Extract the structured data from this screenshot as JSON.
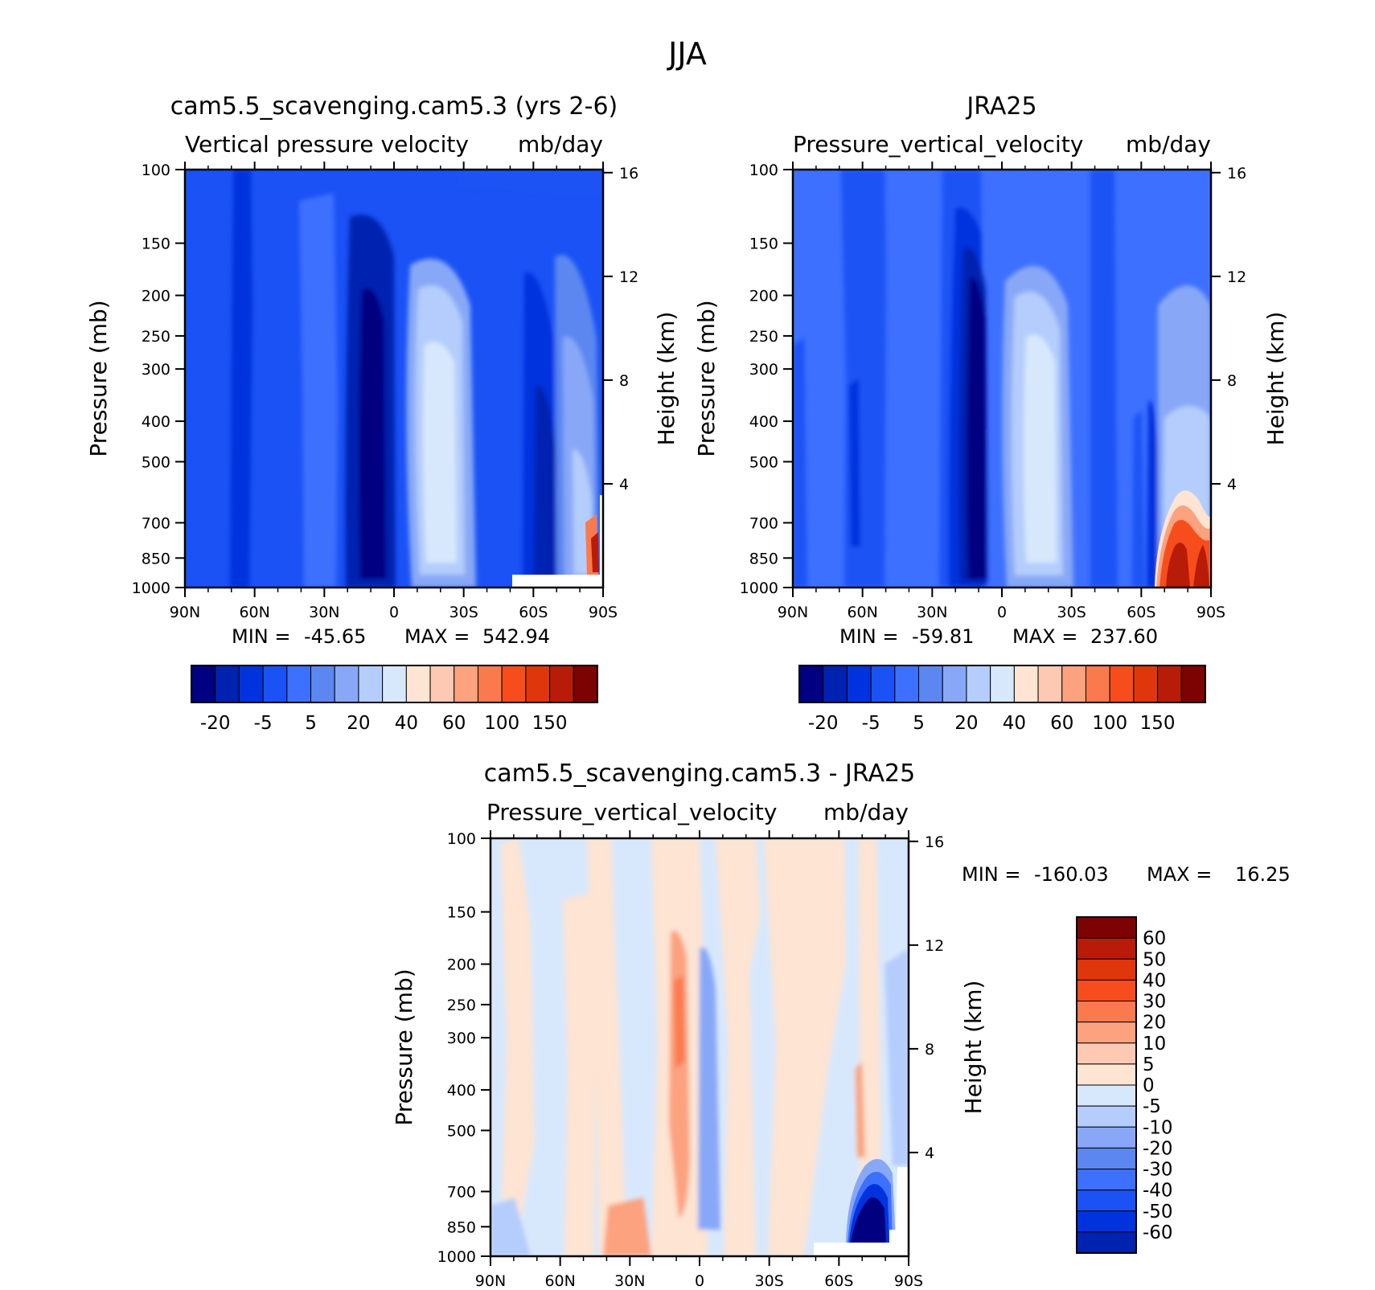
{
  "figure_title": "JJA",
  "colors": {
    "diverging": [
      "#000080",
      "#0022b0",
      "#0033dd",
      "#1a52f5",
      "#3d70ff",
      "#5c87f0",
      "#88a8f7",
      "#b4cdfc",
      "#d8e8fc",
      "#fde4d3",
      "#fdc9b2",
      "#fca27f",
      "#fb7a4d",
      "#f74d1c",
      "#e0360b",
      "#b81c08",
      "#7d0202"
    ],
    "blank": "#ffffff"
  },
  "chart_data": [
    {
      "type": "heatmap",
      "title": "cam5.5_scavenging.cam5.3 (yrs 2-6)",
      "subtitle_left": "Vertical pressure velocity",
      "subtitle_right": "mb/day",
      "xlabel": "",
      "ylabel": "Pressure (mb)",
      "y2label": "Height (km)",
      "x_ticks": [
        "90N",
        "60N",
        "30N",
        "0",
        "30S",
        "60S",
        "90S"
      ],
      "y_ticks": [
        "100",
        "150",
        "200",
        "250",
        "300",
        "400",
        "500",
        "700",
        "850",
        "1000"
      ],
      "y2_ticks": [
        "16",
        "12",
        "8",
        "4"
      ],
      "min_label": "MIN =",
      "min_value": "-45.65",
      "max_label": "MAX =",
      "max_value": "542.94",
      "colorbar_labels": [
        "-20",
        "-5",
        "5",
        "20",
        "40",
        "60",
        "100",
        "150"
      ],
      "ylim": [
        1000,
        100
      ]
    },
    {
      "type": "heatmap",
      "title": "JRA25",
      "subtitle_left": "Pressure_vertical_velocity",
      "subtitle_right": "mb/day",
      "xlabel": "",
      "ylabel": "Pressure (mb)",
      "y2label": "Height (km)",
      "x_ticks": [
        "90N",
        "60N",
        "30N",
        "0",
        "30S",
        "60S",
        "90S"
      ],
      "y_ticks": [
        "100",
        "150",
        "200",
        "250",
        "300",
        "400",
        "500",
        "700",
        "850",
        "1000"
      ],
      "y2_ticks": [
        "16",
        "12",
        "8",
        "4"
      ],
      "min_label": "MIN =",
      "min_value": "-59.81",
      "max_label": "MAX =",
      "max_value": "237.60",
      "colorbar_labels": [
        "-20",
        "-5",
        "5",
        "20",
        "40",
        "60",
        "100",
        "150"
      ],
      "ylim": [
        1000,
        100
      ]
    },
    {
      "type": "heatmap",
      "title": "cam5.5_scavenging.cam5.3 - JRA25",
      "subtitle_left": "Pressure_vertical_velocity",
      "subtitle_right": "mb/day",
      "xlabel": "",
      "ylabel": "Pressure (mb)",
      "y2label": "Height (km)",
      "x_ticks": [
        "90N",
        "60N",
        "30N",
        "0",
        "30S",
        "60S",
        "90S"
      ],
      "y_ticks": [
        "100",
        "150",
        "200",
        "250",
        "300",
        "400",
        "500",
        "700",
        "850",
        "1000"
      ],
      "y2_ticks": [
        "16",
        "12",
        "8",
        "4"
      ],
      "min_label": "MIN =",
      "min_value": "-160.03",
      "max_label": "MAX =",
      "max_value": "16.25",
      "colorbar_labels": [
        "60",
        "50",
        "40",
        "30",
        "20",
        "10",
        "5",
        "0",
        "-5",
        "-10",
        "-20",
        "-30",
        "-40",
        "-50",
        "-60"
      ],
      "ylim": [
        1000,
        100
      ]
    }
  ]
}
